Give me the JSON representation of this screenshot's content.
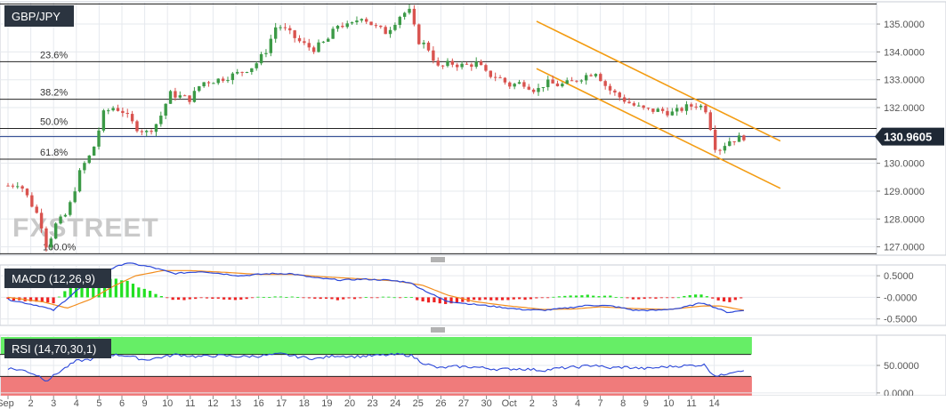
{
  "chart_data": [
    {
      "type": "candlestick",
      "title": "GBP/JPY",
      "last_price_label": "130.9605",
      "last_price": 130.9605,
      "ylim": [
        126.7,
        135.8
      ],
      "y_ticks": [
        127.0,
        128.0,
        129.0,
        130.0,
        131.0,
        132.0,
        133.0,
        134.0,
        135.0
      ],
      "y_tick_labels": [
        "127.0000",
        "128.0000",
        "129.0000",
        "130.0000",
        "131.0000",
        "132.0000",
        "133.0000",
        "134.0000",
        "135.0000"
      ],
      "x_tick_labels": [
        "Sep",
        "2",
        "3",
        "4",
        "5",
        "6",
        "9",
        "10",
        "11",
        "12",
        "13",
        "16",
        "17",
        "18",
        "19",
        "20",
        "23",
        "24",
        "25",
        "26",
        "27",
        "30",
        "Oct",
        "2",
        "3",
        "4",
        "7",
        "8",
        "9",
        "10",
        "11",
        "14"
      ],
      "fibonacci": [
        {
          "label": "23.6%",
          "value": 133.65
        },
        {
          "label": "38.2%",
          "value": 132.3
        },
        {
          "label": "50.0%",
          "value": 131.25
        },
        {
          "label": "61.8%",
          "value": 130.15
        },
        {
          "label": "100.0%",
          "value": 126.75
        }
      ],
      "extra_lines": [
        {
          "name": "top",
          "value": 135.72
        },
        {
          "name": "current",
          "value": 130.96
        }
      ],
      "channel": {
        "color": "#f39c12",
        "upper": [
          {
            "x": 23.2,
            "y": 135.1
          },
          {
            "x": 33.9,
            "y": 130.8
          }
        ],
        "lower": [
          {
            "x": 23.2,
            "y": 133.4
          },
          {
            "x": 33.9,
            "y": 129.1
          }
        ]
      },
      "candle_anchors": [
        [
          0,
          129.2
        ],
        [
          0.5,
          129.3
        ],
        [
          1.4,
          128.0
        ],
        [
          1.7,
          127.0
        ],
        [
          2.1,
          127.8
        ],
        [
          2.6,
          128.2
        ],
        [
          3.2,
          129.8
        ],
        [
          3.7,
          130.4
        ],
        [
          4.2,
          131.8
        ],
        [
          4.6,
          132.0
        ],
        [
          5.0,
          131.9
        ],
        [
          5.6,
          131.3
        ],
        [
          6.1,
          131.1
        ],
        [
          6.6,
          131.5
        ],
        [
          7.1,
          132.5
        ],
        [
          8.0,
          132.3
        ],
        [
          8.5,
          132.9
        ],
        [
          9.2,
          133.0
        ],
        [
          10.0,
          133.2
        ],
        [
          10.8,
          133.5
        ],
        [
          11.3,
          134.0
        ],
        [
          11.8,
          135.0
        ],
        [
          12.3,
          134.7
        ],
        [
          12.9,
          134.3
        ],
        [
          13.4,
          134.1
        ],
        [
          14.0,
          134.4
        ],
        [
          14.5,
          135.0
        ],
        [
          15.0,
          134.9
        ],
        [
          15.5,
          135.3
        ],
        [
          16.1,
          134.9
        ],
        [
          16.6,
          134.7
        ],
        [
          17.2,
          135.3
        ],
        [
          17.6,
          135.5
        ],
        [
          18.0,
          134.4
        ],
        [
          18.4,
          134.2
        ],
        [
          18.9,
          133.4
        ],
        [
          19.4,
          133.6
        ],
        [
          20.0,
          133.5
        ],
        [
          20.6,
          133.6
        ],
        [
          21.0,
          133.2
        ],
        [
          21.5,
          133.1
        ],
        [
          22.0,
          132.8
        ],
        [
          22.6,
          132.9
        ],
        [
          23.2,
          132.6
        ],
        [
          23.6,
          132.9
        ],
        [
          24.2,
          132.8
        ],
        [
          24.7,
          132.9
        ],
        [
          25.2,
          133.1
        ],
        [
          25.8,
          133.3
        ],
        [
          26.3,
          132.7
        ],
        [
          26.8,
          132.4
        ],
        [
          27.4,
          132.1
        ],
        [
          28.0,
          131.9
        ],
        [
          28.6,
          131.9
        ],
        [
          29.2,
          131.8
        ],
        [
          29.7,
          132.0
        ],
        [
          30.2,
          132.1
        ],
        [
          30.6,
          132.0
        ],
        [
          30.9,
          131.1
        ],
        [
          31.1,
          130.4
        ],
        [
          31.6,
          130.8
        ],
        [
          32.3,
          130.95
        ]
      ],
      "volatility": 0.18
    },
    {
      "type": "line+histogram",
      "title": "MACD (12,26,9)",
      "ylim": [
        -0.65,
        0.75
      ],
      "y_ticks": [
        0.5,
        0.0,
        -0.5
      ],
      "y_tick_labels": [
        "0.5000",
        "-0.0000",
        "-0.5000"
      ],
      "colors": {
        "macd": "#2b47d9",
        "signal": "#f28c1c",
        "hist_up": "#22e022",
        "hist_down": "#ee2222"
      },
      "macd_anchors": [
        [
          0,
          -0.05
        ],
        [
          1.4,
          -0.2
        ],
        [
          2.0,
          -0.3
        ],
        [
          3.0,
          0.15
        ],
        [
          4.0,
          0.55
        ],
        [
          5.2,
          0.8
        ],
        [
          6.3,
          0.7
        ],
        [
          7.3,
          0.55
        ],
        [
          8.5,
          0.6
        ],
        [
          10.2,
          0.5
        ],
        [
          11.5,
          0.55
        ],
        [
          12.4,
          0.55
        ],
        [
          13.5,
          0.45
        ],
        [
          14.6,
          0.4
        ],
        [
          15.6,
          0.42
        ],
        [
          16.6,
          0.4
        ],
        [
          17.6,
          0.35
        ],
        [
          18.5,
          0.1
        ],
        [
          19.2,
          -0.08
        ],
        [
          20.2,
          -0.15
        ],
        [
          21.5,
          -0.22
        ],
        [
          22.5,
          -0.28
        ],
        [
          23.5,
          -0.3
        ],
        [
          24.5,
          -0.25
        ],
        [
          25.5,
          -0.18
        ],
        [
          26.5,
          -0.2
        ],
        [
          27.5,
          -0.3
        ],
        [
          28.5,
          -0.3
        ],
        [
          29.5,
          -0.25
        ],
        [
          30.5,
          -0.12
        ],
        [
          31.1,
          -0.25
        ],
        [
          31.6,
          -0.35
        ],
        [
          32.3,
          -0.3
        ]
      ],
      "signal_anchors": [
        [
          0,
          0.0
        ],
        [
          1.5,
          -0.1
        ],
        [
          2.6,
          -0.25
        ],
        [
          3.6,
          -0.05
        ],
        [
          4.6,
          0.25
        ],
        [
          5.6,
          0.5
        ],
        [
          6.8,
          0.62
        ],
        [
          8.0,
          0.62
        ],
        [
          9.5,
          0.58
        ],
        [
          11.0,
          0.53
        ],
        [
          12.5,
          0.53
        ],
        [
          14.0,
          0.47
        ],
        [
          15.5,
          0.43
        ],
        [
          17.0,
          0.38
        ],
        [
          18.2,
          0.28
        ],
        [
          19.3,
          0.05
        ],
        [
          20.5,
          -0.1
        ],
        [
          22.0,
          -0.2
        ],
        [
          23.5,
          -0.28
        ],
        [
          24.8,
          -0.27
        ],
        [
          26.0,
          -0.22
        ],
        [
          27.5,
          -0.26
        ],
        [
          29.0,
          -0.28
        ],
        [
          30.5,
          -0.2
        ],
        [
          31.3,
          -0.2
        ],
        [
          32.3,
          -0.3
        ]
      ]
    },
    {
      "type": "line",
      "title": "RSI (14,70,30,1)",
      "ylim": [
        -5,
        105
      ],
      "overbought": 70,
      "oversold": 30,
      "y_ticks": [
        50,
        0
      ],
      "y_tick_labels": [
        "50.0000",
        "0.0000"
      ],
      "colors": {
        "line": "#2b47d9",
        "overbought_fill": "#66ee66",
        "oversold_fill": "#f07b7b"
      },
      "rsi_anchors": [
        [
          0,
          45
        ],
        [
          0.8,
          40
        ],
        [
          1.4,
          30
        ],
        [
          1.7,
          22
        ],
        [
          2.3,
          40
        ],
        [
          3.0,
          58
        ],
        [
          3.8,
          62
        ],
        [
          4.4,
          70
        ],
        [
          5.2,
          68
        ],
        [
          6.0,
          60
        ],
        [
          6.6,
          64
        ],
        [
          7.4,
          70
        ],
        [
          8.3,
          66
        ],
        [
          9.3,
          68
        ],
        [
          10.2,
          66
        ],
        [
          11.0,
          67
        ],
        [
          12.0,
          71
        ],
        [
          12.7,
          66
        ],
        [
          13.5,
          62
        ],
        [
          14.4,
          68
        ],
        [
          15.2,
          66
        ],
        [
          16.2,
          68
        ],
        [
          17.2,
          70
        ],
        [
          17.7,
          68
        ],
        [
          18.2,
          55
        ],
        [
          18.9,
          45
        ],
        [
          19.6,
          48
        ],
        [
          20.5,
          47
        ],
        [
          21.5,
          43
        ],
        [
          22.5,
          44
        ],
        [
          23.5,
          41
        ],
        [
          24.2,
          45
        ],
        [
          25.0,
          47
        ],
        [
          25.8,
          51
        ],
        [
          26.3,
          45
        ],
        [
          27.0,
          47
        ],
        [
          28.0,
          44
        ],
        [
          29.0,
          48
        ],
        [
          30.0,
          50
        ],
        [
          30.6,
          51
        ],
        [
          30.9,
          35
        ],
        [
          31.2,
          30
        ],
        [
          31.7,
          38
        ],
        [
          32.3,
          42
        ]
      ]
    }
  ],
  "watermark": "FXSTREET",
  "colors": {
    "up_candle": "#3c9a47",
    "down_candle": "#d9534f",
    "panel_label_bg": "#2b3440",
    "price_tag_bg": "#1e2835",
    "grid": "#e6e9ee",
    "channel": "#f39c12"
  },
  "icons": {
    "splitter": "drag-handle-icon"
  }
}
